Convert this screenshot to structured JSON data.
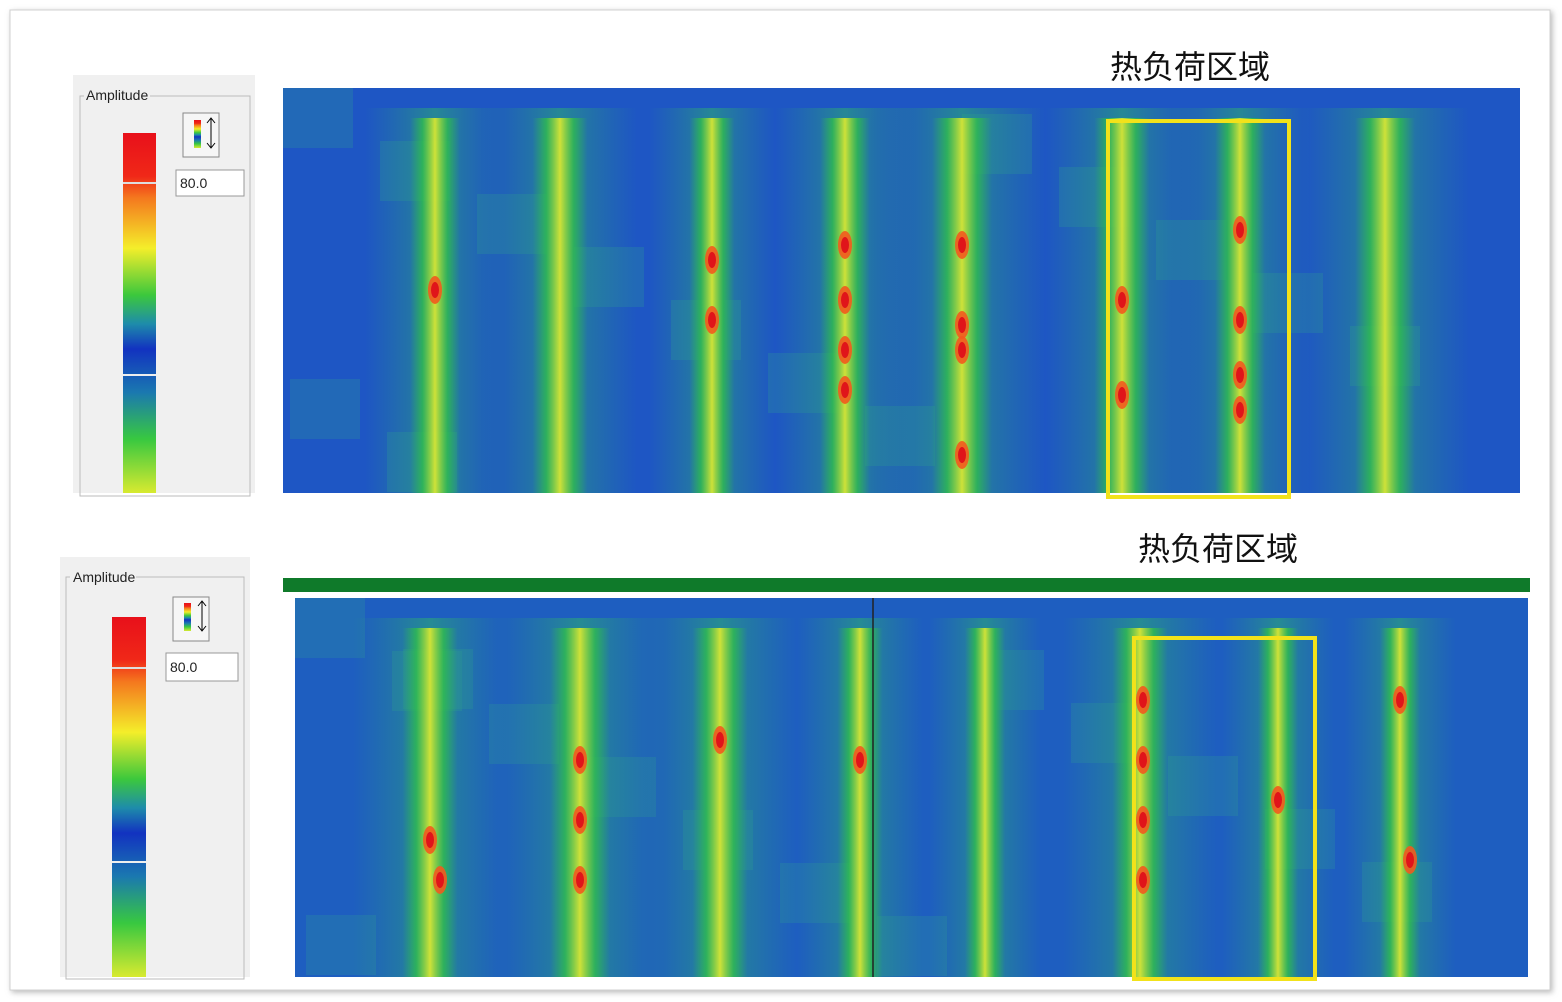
{
  "panels": [
    {
      "title": "热负荷区域",
      "legend_label": "Amplitude",
      "gain": "80.0"
    },
    {
      "title": "热负荷区域",
      "legend_label": "Amplitude",
      "gain": "80.0"
    }
  ]
}
